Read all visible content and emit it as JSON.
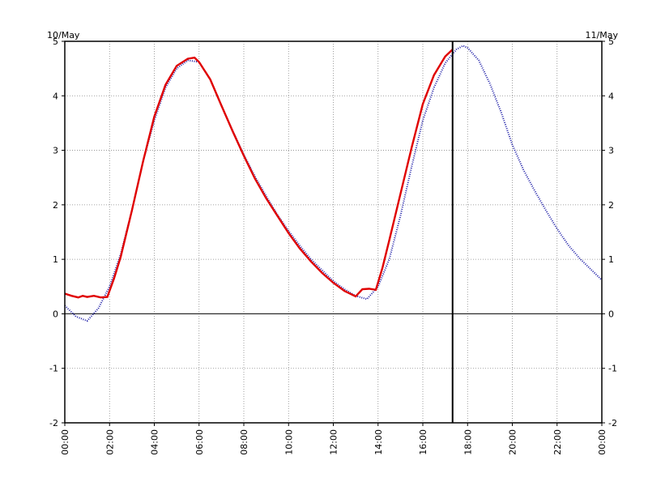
{
  "chart_data": {
    "type": "line",
    "title": "",
    "xlabel": "",
    "ylabel": "",
    "date_start_label": "10/May",
    "date_end_label": "11/May",
    "x_unit": "hours",
    "xlim": [
      0,
      24
    ],
    "ylim": [
      -2,
      5
    ],
    "x_ticks": [
      0,
      2,
      4,
      6,
      8,
      10,
      12,
      14,
      16,
      18,
      20,
      22,
      24
    ],
    "x_tick_labels": [
      "00:00",
      "02:00",
      "04:00",
      "06:00",
      "08:00",
      "10:00",
      "12:00",
      "14:00",
      "16:00",
      "18:00",
      "20:00",
      "22:00",
      "00:00"
    ],
    "y_ticks": [
      -2,
      -1,
      0,
      1,
      2,
      3,
      4,
      5
    ],
    "y_tick_labels": [
      "-2",
      "-1",
      "0",
      "1",
      "2",
      "3",
      "4",
      "5"
    ],
    "grid": true,
    "now_marker_x": 17.33,
    "colors": {
      "predicted": "#1a1aa6",
      "observed": "#e00000",
      "marker": "#000000"
    },
    "series": [
      {
        "key": "predicted",
        "style": "dotted",
        "x": [
          0,
          0.5,
          1.0,
          1.5,
          2.0,
          2.5,
          3.0,
          3.5,
          4.0,
          4.5,
          5.0,
          5.5,
          6.0,
          6.5,
          7.0,
          7.5,
          8.0,
          8.5,
          9.0,
          9.5,
          10.0,
          10.5,
          11.0,
          11.5,
          12.0,
          12.5,
          13.0,
          13.5,
          14.0,
          14.5,
          15.0,
          15.5,
          16.0,
          16.5,
          17.0,
          17.5,
          17.8,
          18.0,
          18.5,
          19.0,
          19.5,
          20.0,
          20.5,
          21.0,
          21.5,
          22.0,
          22.5,
          23.0,
          23.5,
          24.0
        ],
        "y": [
          0.15,
          -0.05,
          -0.13,
          0.1,
          0.5,
          1.1,
          1.9,
          2.8,
          3.55,
          4.15,
          4.5,
          4.65,
          4.62,
          4.3,
          3.82,
          3.36,
          2.92,
          2.52,
          2.16,
          1.82,
          1.52,
          1.25,
          1.0,
          0.8,
          0.6,
          0.45,
          0.33,
          0.27,
          0.5,
          1.0,
          1.8,
          2.7,
          3.55,
          4.15,
          4.6,
          4.85,
          4.92,
          4.88,
          4.65,
          4.22,
          3.7,
          3.1,
          2.64,
          2.26,
          1.9,
          1.56,
          1.26,
          1.02,
          0.82,
          0.62
        ]
      },
      {
        "key": "observed",
        "style": "solid",
        "x": [
          0,
          0.3,
          0.6,
          0.8,
          1.0,
          1.3,
          1.6,
          1.9,
          2.2,
          2.5,
          3.0,
          3.5,
          4.0,
          4.5,
          5.0,
          5.5,
          5.8,
          6.0,
          6.5,
          7.0,
          7.5,
          8.0,
          8.5,
          9.0,
          9.5,
          10.0,
          10.5,
          11.0,
          11.5,
          12.0,
          12.5,
          13.0,
          13.3,
          13.6,
          13.9,
          14.2,
          14.5,
          15.0,
          15.5,
          16.0,
          16.5,
          17.0,
          17.33
        ],
        "y": [
          0.37,
          0.33,
          0.3,
          0.33,
          0.31,
          0.33,
          0.3,
          0.31,
          0.65,
          1.05,
          1.9,
          2.8,
          3.62,
          4.2,
          4.55,
          4.68,
          4.7,
          4.62,
          4.3,
          3.82,
          3.35,
          2.9,
          2.48,
          2.12,
          1.8,
          1.48,
          1.2,
          0.96,
          0.75,
          0.57,
          0.42,
          0.32,
          0.45,
          0.46,
          0.44,
          0.85,
          1.35,
          2.2,
          3.05,
          3.85,
          4.38,
          4.72,
          4.85
        ]
      }
    ]
  }
}
